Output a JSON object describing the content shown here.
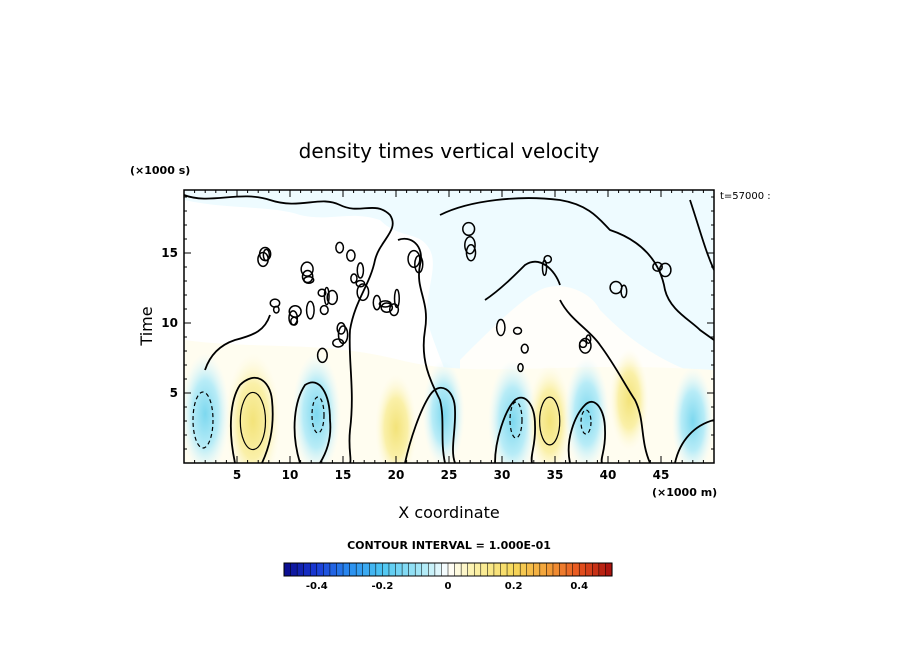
{
  "chart_data": {
    "type": "contour",
    "title": "density times vertical velocity",
    "xlabel": "X coordinate",
    "ylabel": "Time",
    "x_unit": "(×1000 m)",
    "y_unit": "(×1000 s)",
    "timestamp": "t=57000 :",
    "xlim": [
      0,
      50
    ],
    "ylim": [
      0,
      19.5
    ],
    "x_ticks": [
      5,
      10,
      15,
      20,
      25,
      30,
      35,
      40,
      45
    ],
    "y_ticks": [
      5,
      10,
      15
    ],
    "contour_interval_text": "CONTOUR INTERVAL = 1.000E-01",
    "colorbar": {
      "min": -0.5,
      "max": 0.5,
      "tick_values": [
        -0.4,
        -0.2,
        0,
        0.2,
        0.4
      ],
      "tick_labels": [
        "-0.4",
        "-0.2",
        "0",
        "0.2",
        "0.4"
      ]
    },
    "features": [
      {
        "x": 6.5,
        "y": 3.0,
        "sign": "positive",
        "peak": 0.2
      },
      {
        "x": 2.0,
        "y": 3.5,
        "sign": "negative",
        "peak": -0.15
      },
      {
        "x": 12.5,
        "y": 3.5,
        "sign": "negative",
        "peak": -0.15
      },
      {
        "x": 20.0,
        "y": 2.5,
        "sign": "positive",
        "peak": 0.1
      },
      {
        "x": 24.5,
        "y": 3.5,
        "sign": "negative",
        "peak": -0.1
      },
      {
        "x": 31.0,
        "y": 3.0,
        "sign": "negative",
        "peak": -0.15
      },
      {
        "x": 34.5,
        "y": 3.0,
        "sign": "positive",
        "peak": 0.12
      },
      {
        "x": 38.0,
        "y": 3.5,
        "sign": "negative",
        "peak": -0.12
      },
      {
        "x": 42.0,
        "y": 4.5,
        "sign": "positive",
        "peak": 0.08
      },
      {
        "x": 48.0,
        "y": 3.0,
        "sign": "negative",
        "peak": -0.1
      }
    ]
  }
}
